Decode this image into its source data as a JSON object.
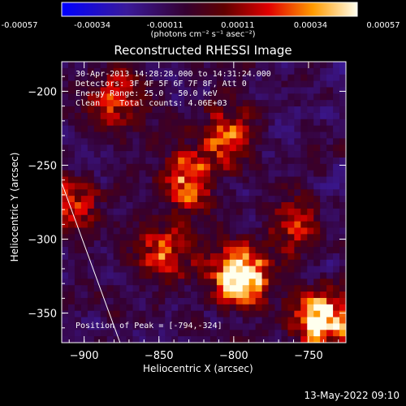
{
  "chart_data": {
    "type": "heatmap",
    "title": "Reconstructed RHESSI Image",
    "xlabel": "Heliocentric X (arcsec)",
    "ylabel": "Heliocentric Y (arcsec)",
    "xlim": [
      -915,
      -725
    ],
    "ylim": [
      -370,
      -180
    ],
    "x_ticks": [
      -900,
      -850,
      -800,
      -750
    ],
    "y_ticks": [
      -200,
      -250,
      -300,
      -350
    ],
    "colorbar": {
      "min": -0.00057,
      "max": 0.00057,
      "ticks": [
        "-0.00057",
        "-0.00034",
        "-0.00011",
        "0.00011",
        "0.00034",
        "0.00057"
      ],
      "units": "(photons cm⁻² s⁻¹ asec⁻²)"
    },
    "annotations": [
      "30-Apr-2013 14:28:28.000 to 14:31:24.000",
      "Detectors: 3F 4F 5F 6F 7F 8F, Att 0",
      "Energy Range: 25.0 - 50.0 keV",
      "Clean    Total counts: 4.06E+03"
    ],
    "peak_label": "Position of Peak = [-794,-324]",
    "peak": [
      -794,
      -324
    ],
    "bright_regions": [
      {
        "x": -795,
        "y": -325,
        "intensity": 1.0
      },
      {
        "x": -740,
        "y": -355,
        "intensity": 0.9
      },
      {
        "x": -830,
        "y": -260,
        "intensity": 0.65
      },
      {
        "x": -805,
        "y": -230,
        "intensity": 0.55
      },
      {
        "x": -845,
        "y": -310,
        "intensity": 0.6
      },
      {
        "x": -880,
        "y": -205,
        "intensity": 0.45
      },
      {
        "x": -910,
        "y": -275,
        "intensity": 0.5
      },
      {
        "x": -760,
        "y": -290,
        "intensity": 0.4
      }
    ],
    "limb_line": {
      "x1": -915,
      "y1": -262,
      "x2": -876,
      "y2": -370
    },
    "grid": false
  },
  "footer_timestamp": "13-May-2022 09:10"
}
